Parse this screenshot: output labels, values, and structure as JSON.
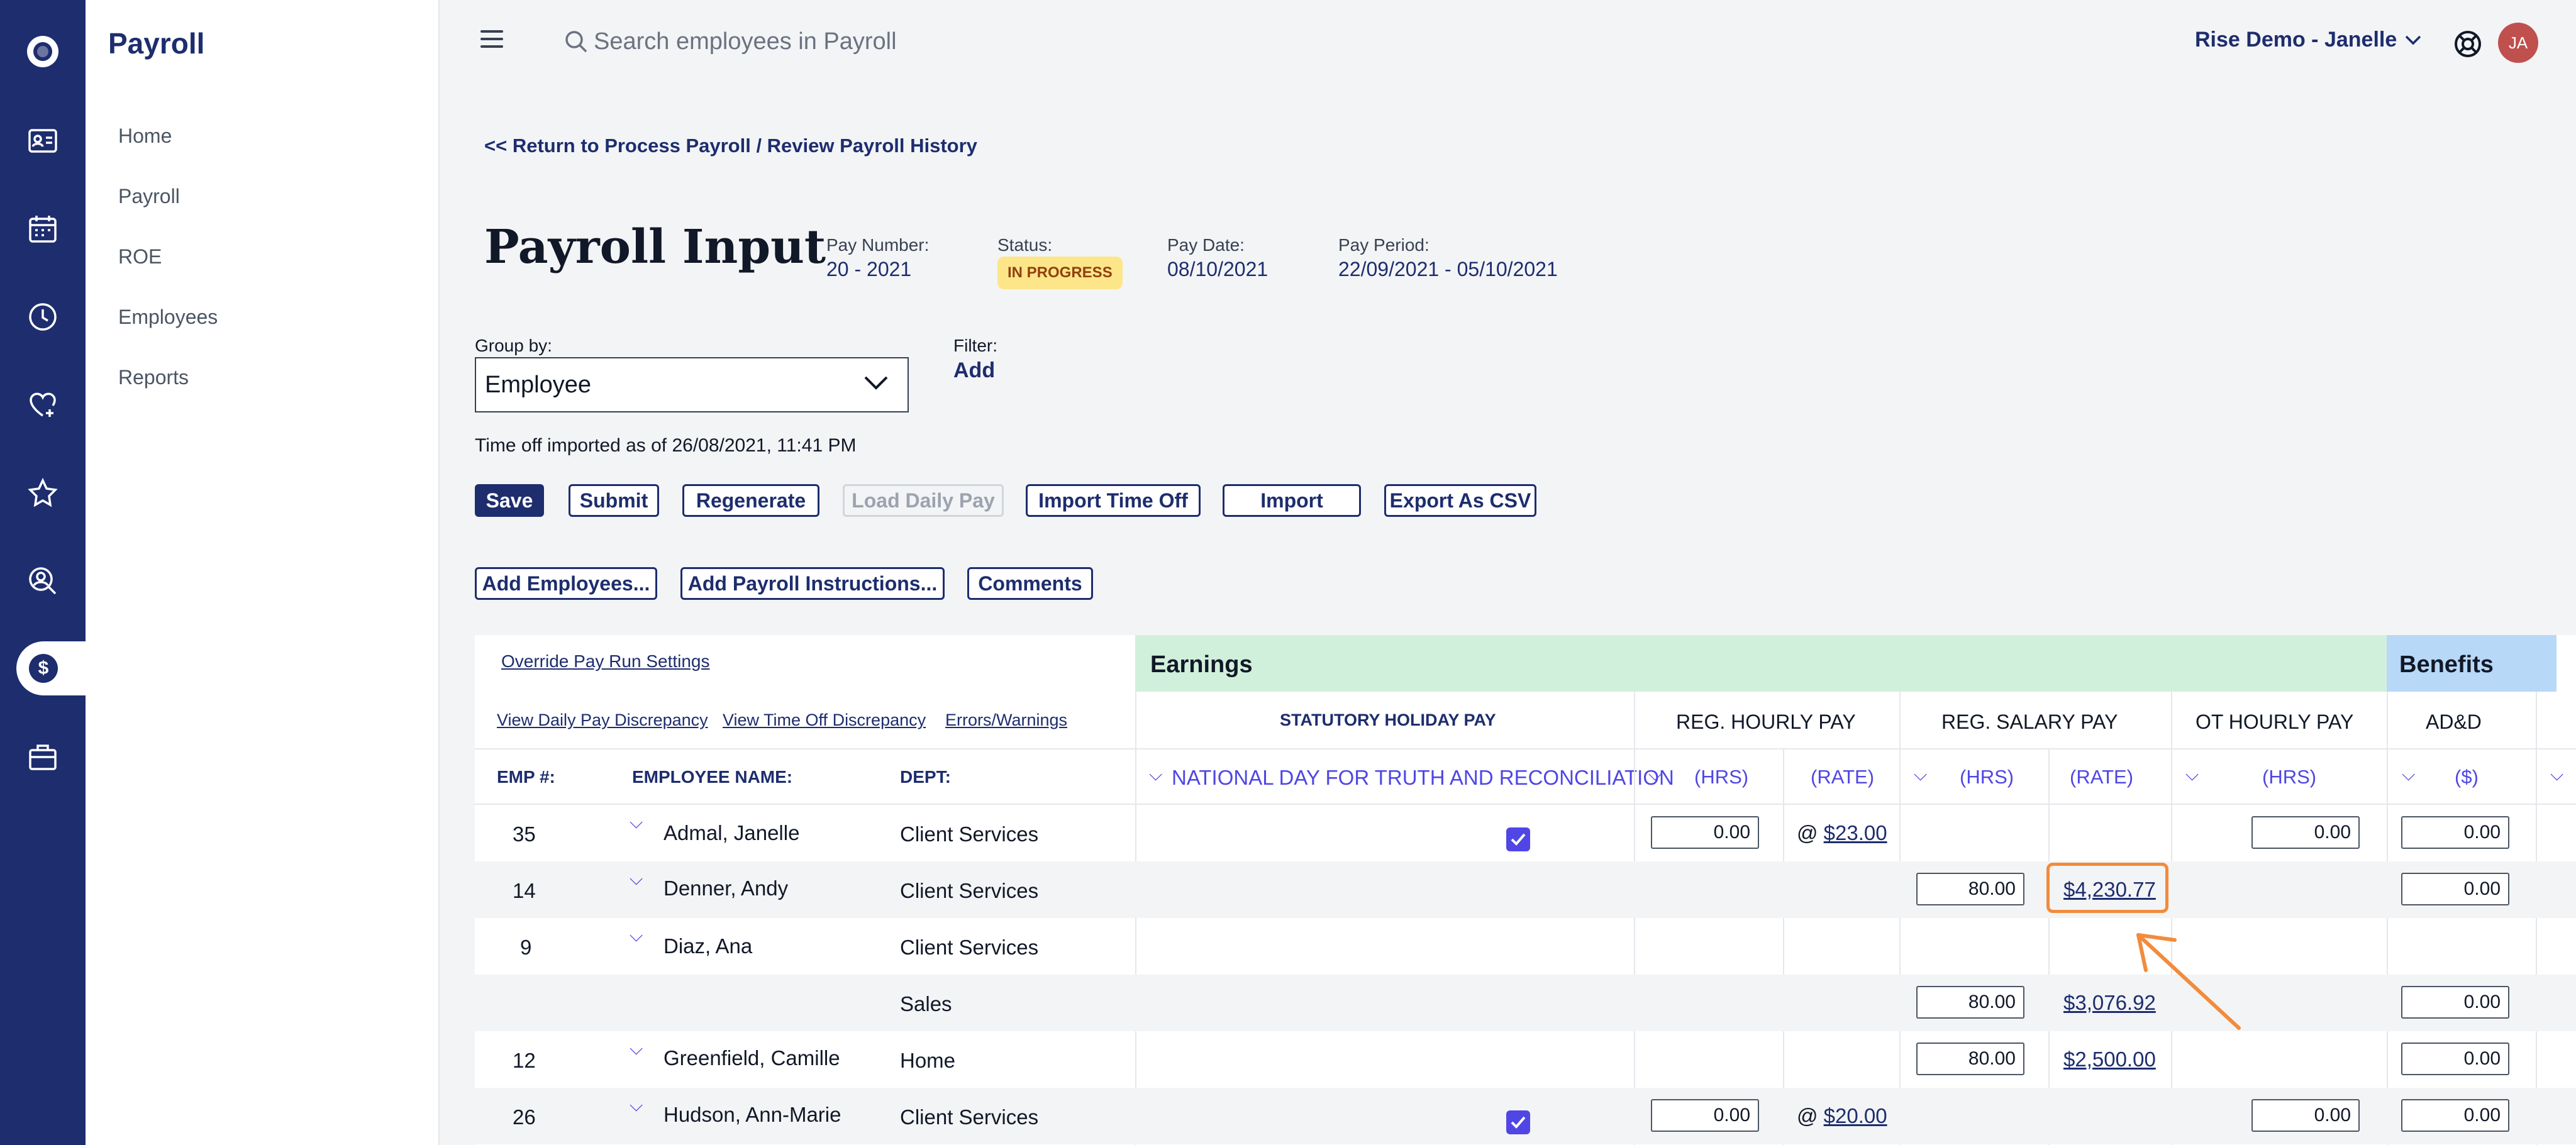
{
  "app": {
    "title": "Payroll"
  },
  "nav": {
    "items": [
      "Home",
      "Payroll",
      "ROE",
      "Employees",
      "Reports"
    ]
  },
  "rail": {
    "icons": [
      "logo-icon",
      "id-card-icon",
      "calendar-icon",
      "clock-icon",
      "heart-icon",
      "star-icon",
      "people-search-icon",
      "dollar-icon",
      "briefcase-icon"
    ],
    "active": "dollar-icon"
  },
  "topbar": {
    "search_placeholder": "Search employees in Payroll",
    "account": "Rise Demo - Janelle",
    "avatar_initials": "JA"
  },
  "breadcrumb": "<< Return to Process Payroll / Review Payroll History",
  "page": {
    "title": "Payroll Input",
    "pay_number_label": "Pay Number:",
    "pay_number": "20 - 2021",
    "status_label": "Status:",
    "status": "IN PROGRESS",
    "pay_date_label": "Pay Date:",
    "pay_date": "08/10/2021",
    "pay_period_label": "Pay Period:",
    "pay_period": "22/09/2021 - 05/10/2021"
  },
  "group_by": {
    "label": "Group by:",
    "value": "Employee"
  },
  "filter": {
    "label": "Filter:",
    "add": "Add"
  },
  "timeoff_note": "Time off imported as of 26/08/2021, 11:41 PM",
  "buttons": {
    "save": "Save",
    "submit": "Submit",
    "regenerate": "Regenerate",
    "load_daily_pay": "Load Daily Pay",
    "import_time_off": "Import Time Off",
    "import": "Import",
    "export_csv": "Export As CSV",
    "add_employees": "Add Employees...",
    "add_instructions": "Add Payroll Instructions...",
    "comments": "Comments"
  },
  "table": {
    "links": {
      "override": "Override Pay Run Settings",
      "daily_discrepancy": "View Daily Pay Discrepancy",
      "timeoff_discrepancy": "View Time Off Discrepancy",
      "errors": "Errors/Warnings"
    },
    "groups": {
      "earnings": "Earnings",
      "benefits": "Benefits"
    },
    "columns": {
      "stat": "STATUTORY HOLIDAY PAY",
      "reg_hourly": "REG. HOURLY PAY",
      "reg_salary": "REG. SALARY PAY",
      "ot_hourly": "OT HOURLY PAY",
      "add": "AD&D"
    },
    "subcolumns": {
      "national_day": "NATIONAL DAY FOR TRUTH AND RECONCILIATION",
      "hrs": "(HRS)",
      "rate": "(RATE)",
      "dollars": "($)"
    },
    "row_headers": {
      "emp": "EMP #:",
      "name": "EMPLOYEE NAME:",
      "dept": "DEPT:"
    },
    "rows": [
      {
        "emp": "35",
        "name": "Admal, Janelle",
        "dept": "Client Services",
        "stat_checked": true,
        "reg_hrs": "0.00",
        "reg_rate": "@ $23.00",
        "sal_hrs": "",
        "sal_rate": "",
        "ot_hrs": "0.00",
        "add": "0.00"
      },
      {
        "emp": "14",
        "name": "Denner, Andy",
        "dept": "Client Services",
        "stat_checked": false,
        "reg_hrs": "",
        "reg_rate": "",
        "sal_hrs": "80.00",
        "sal_rate": "$4,230.77",
        "ot_hrs": "",
        "add": "0.00"
      },
      {
        "emp": "9",
        "name": "Diaz, Ana",
        "dept": "Client Services",
        "stat_checked": false,
        "reg_hrs": "",
        "reg_rate": "",
        "sal_hrs": "",
        "sal_rate": "",
        "ot_hrs": "",
        "add": ""
      },
      {
        "emp": "",
        "name": "",
        "dept": "Sales",
        "stat_checked": false,
        "reg_hrs": "",
        "reg_rate": "",
        "sal_hrs": "80.00",
        "sal_rate": "$3,076.92",
        "ot_hrs": "",
        "add": "0.00"
      },
      {
        "emp": "12",
        "name": "Greenfield, Camille",
        "dept": "Home",
        "stat_checked": false,
        "reg_hrs": "",
        "reg_rate": "",
        "sal_hrs": "80.00",
        "sal_rate": "$2,500.00",
        "ot_hrs": "",
        "add": "0.00"
      },
      {
        "emp": "26",
        "name": "Hudson, Ann-Marie",
        "dept": "Client Services",
        "stat_checked": true,
        "reg_hrs": "0.00",
        "reg_rate": "@ $20.00",
        "sal_hrs": "",
        "sal_rate": "",
        "ot_hrs": "0.00",
        "add": "0.00"
      }
    ]
  },
  "colors": {
    "navy": "#1d2d6e",
    "earnings_header": "#d1f0db",
    "benefits_header": "#b8d8f8",
    "status_badge": "#fde68a",
    "highlight": "#f28b3b",
    "accent": "#4f46e5"
  }
}
